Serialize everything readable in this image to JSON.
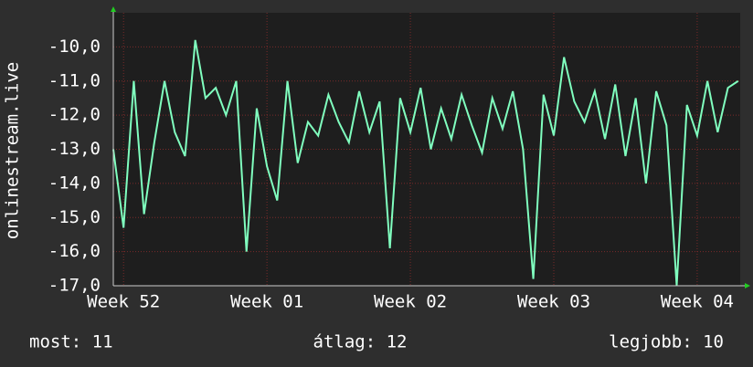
{
  "chart_data": {
    "type": "line",
    "y_label": "onlinestream.live",
    "x": [
      -0.5,
      0,
      0.5,
      1,
      1.5,
      2,
      2.5,
      3,
      3.5,
      4,
      4.5,
      5,
      5.5,
      6,
      6.5,
      7,
      7.5,
      8,
      8.5,
      9,
      9.5,
      10,
      10.5,
      11,
      11.5,
      12,
      12.5,
      13,
      13.5,
      14,
      14.5,
      15,
      15.5,
      16,
      16.5,
      17,
      17.5,
      18,
      18.5,
      19,
      19.5,
      20,
      20.5,
      21,
      21.5,
      22,
      22.5,
      23,
      23.5,
      24,
      24.5,
      25,
      25.5,
      26,
      26.5,
      27,
      27.5,
      28,
      28.5,
      29,
      29.5,
      30
    ],
    "series": [
      {
        "color": "#80ffbf",
        "values": [
          -13.0,
          -15.3,
          -11.0,
          -14.9,
          -12.8,
          -11.0,
          -12.5,
          -13.2,
          -9.8,
          -11.5,
          -11.2,
          -12.0,
          -11.0,
          -16.0,
          -11.8,
          -13.5,
          -14.5,
          -11.0,
          -13.4,
          -12.2,
          -12.6,
          -11.4,
          -12.2,
          -12.8,
          -11.3,
          -12.5,
          -11.6,
          -15.9,
          -11.5,
          -12.5,
          -11.2,
          -13.0,
          -11.8,
          -12.7,
          -11.4,
          -12.3,
          -13.1,
          -11.5,
          -12.4,
          -11.3,
          -13.0,
          -16.8,
          -11.4,
          -12.6,
          -10.3,
          -11.6,
          -12.2,
          -11.3,
          -12.7,
          -11.1,
          -13.2,
          -11.5,
          -14.0,
          -11.3,
          -12.3,
          -17.0,
          -11.7,
          -12.6,
          -11.0,
          -12.5,
          -11.2,
          -11.0
        ]
      }
    ],
    "xlim": [
      -0.5,
      30.1
    ],
    "xticks": [
      {
        "value": 0,
        "label": "Week 52"
      },
      {
        "value": 7,
        "label": "Week 01"
      },
      {
        "value": 14,
        "label": "Week 02"
      },
      {
        "value": 21,
        "label": "Week 03"
      },
      {
        "value": 28,
        "label": "Week 04"
      }
    ],
    "ylim": [
      -17,
      -9
    ],
    "yticks": [
      {
        "value": -17,
        "label": "-17,0"
      },
      {
        "value": -16,
        "label": "-16,0"
      },
      {
        "value": -15,
        "label": "-15,0"
      },
      {
        "value": -14,
        "label": "-14,0"
      },
      {
        "value": -13,
        "label": "-13,0"
      },
      {
        "value": -12,
        "label": "-12,0"
      },
      {
        "value": -11,
        "label": "-11,0"
      },
      {
        "value": -10,
        "label": "-10,0"
      }
    ],
    "grid": true,
    "footer": [
      "most: 11",
      "átlag: 12",
      "legjobb: 10"
    ]
  }
}
